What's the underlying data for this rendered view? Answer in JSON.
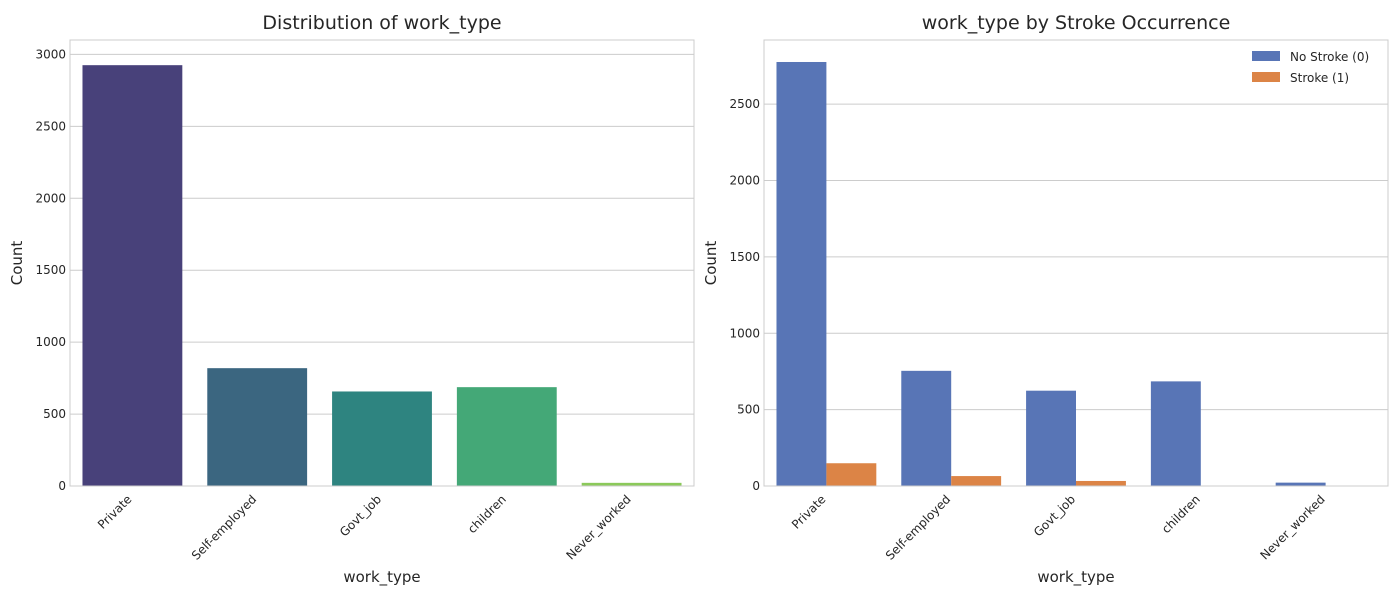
{
  "chart_data": [
    {
      "type": "bar",
      "title": "Distribution of work_type",
      "xlabel": "work_type",
      "ylabel": "Count",
      "categories": [
        "Private",
        "Self-employed",
        "Govt_job",
        "children",
        "Never_worked"
      ],
      "values": [
        2925,
        819,
        657,
        687,
        22
      ],
      "bar_colors": [
        "#48417a",
        "#3b6680",
        "#2e8480",
        "#44a877",
        "#8bc95a"
      ],
      "ylim": [
        0,
        3100
      ],
      "yticks": [
        0,
        500,
        1000,
        1500,
        2000,
        2500,
        3000
      ],
      "grid": true
    },
    {
      "type": "bar",
      "title": "work_type by Stroke Occurrence",
      "xlabel": "work_type",
      "ylabel": "Count",
      "categories": [
        "Private",
        "Self-employed",
        "Govt_job",
        "children",
        "Never_worked"
      ],
      "series": [
        {
          "name": "No Stroke (0)",
          "color": "#5875b6",
          "values": [
            2776,
            754,
            624,
            685,
            22
          ]
        },
        {
          "name": "Stroke (1)",
          "color": "#dc8446",
          "values": [
            149,
            65,
            33,
            2,
            0
          ]
        }
      ],
      "ylim": [
        0,
        2920
      ],
      "yticks": [
        0,
        500,
        1000,
        1500,
        2000,
        2500
      ],
      "legend": "top-right",
      "grid": true
    }
  ]
}
